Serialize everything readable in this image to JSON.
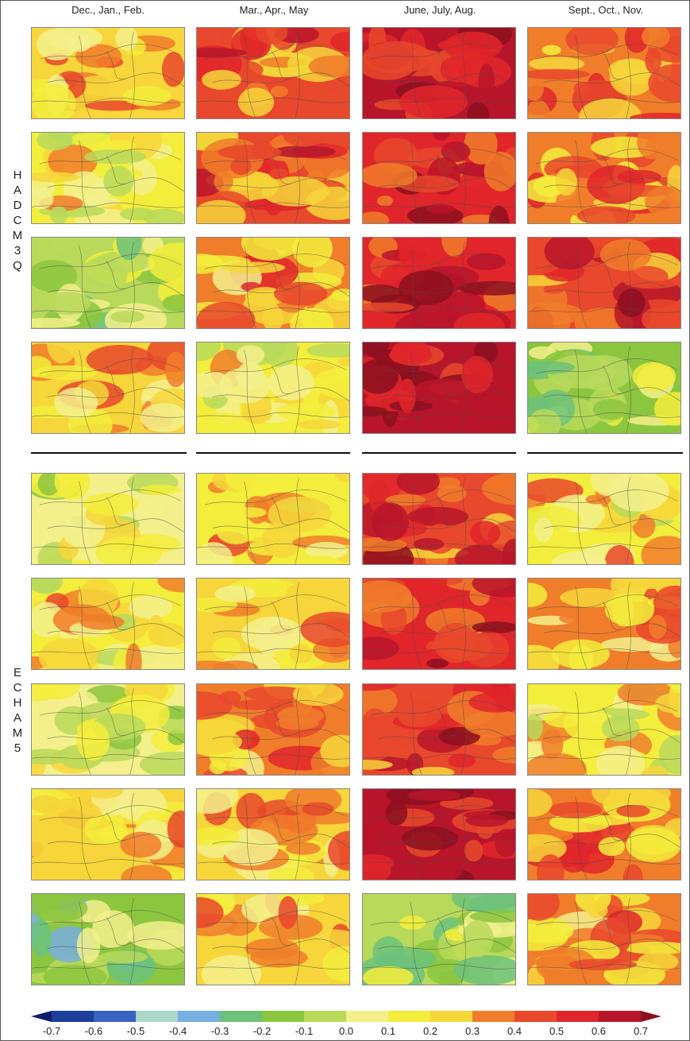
{
  "figure": {
    "columns": [
      "Dec., Jan., Feb.",
      "Mar., Apr., May",
      "June, July, Aug.",
      "Sept., Oct., Nov."
    ],
    "groups": [
      {
        "label": "HADCM3Q",
        "rows": 4
      },
      {
        "label": "ECHAM5",
        "rows": 5
      }
    ]
  },
  "colorbar": {
    "ticks": [
      "-0.7",
      "-0.6",
      "-0.5",
      "-0.4",
      "-0.3",
      "-0.2",
      "-0.1",
      "0.0",
      "0.1",
      "0.2",
      "0.3",
      "0.4",
      "0.5",
      "0.6",
      "0.7"
    ],
    "colors": [
      "#0b1f6b",
      "#1f3f9e",
      "#3a62c0",
      "#a8d8c8",
      "#78aee0",
      "#6cc27a",
      "#8cc63f",
      "#b8d95a",
      "#f3f08c",
      "#f3ed3c",
      "#f6d63a",
      "#f07d2a",
      "#e8482b",
      "#e0262a",
      "#b8152a",
      "#8c0f1e"
    ]
  },
  "maps": [
    {
      "row": 0,
      "col": 0,
      "level": 0.25
    },
    {
      "row": 0,
      "col": 1,
      "level": 0.42
    },
    {
      "row": 0,
      "col": 2,
      "level": 0.62
    },
    {
      "row": 0,
      "col": 3,
      "level": 0.38
    },
    {
      "row": 1,
      "col": 0,
      "level": 0.12
    },
    {
      "row": 1,
      "col": 1,
      "level": 0.4
    },
    {
      "row": 1,
      "col": 2,
      "level": 0.55
    },
    {
      "row": 1,
      "col": 3,
      "level": 0.35
    },
    {
      "row": 2,
      "col": 0,
      "level": 0.0
    },
    {
      "row": 2,
      "col": 1,
      "level": 0.3
    },
    {
      "row": 2,
      "col": 2,
      "level": 0.52
    },
    {
      "row": 2,
      "col": 3,
      "level": 0.5
    },
    {
      "row": 3,
      "col": 0,
      "level": 0.25
    },
    {
      "row": 3,
      "col": 1,
      "level": 0.12
    },
    {
      "row": 3,
      "col": 2,
      "level": 0.65
    },
    {
      "row": 3,
      "col": 3,
      "level": -0.1
    },
    {
      "row": 4,
      "col": 0,
      "level": 0.02
    },
    {
      "row": 4,
      "col": 1,
      "level": 0.2
    },
    {
      "row": 4,
      "col": 2,
      "level": 0.5
    },
    {
      "row": 4,
      "col": 3,
      "level": 0.2
    },
    {
      "row": 5,
      "col": 0,
      "level": 0.2
    },
    {
      "row": 5,
      "col": 1,
      "level": 0.25
    },
    {
      "row": 5,
      "col": 2,
      "level": 0.52
    },
    {
      "row": 5,
      "col": 3,
      "level": 0.3
    },
    {
      "row": 6,
      "col": 0,
      "level": 0.05
    },
    {
      "row": 6,
      "col": 1,
      "level": 0.3
    },
    {
      "row": 6,
      "col": 2,
      "level": 0.5
    },
    {
      "row": 6,
      "col": 3,
      "level": 0.15
    },
    {
      "row": 7,
      "col": 0,
      "level": 0.22
    },
    {
      "row": 7,
      "col": 1,
      "level": 0.27
    },
    {
      "row": 7,
      "col": 2,
      "level": 0.62
    },
    {
      "row": 7,
      "col": 3,
      "level": 0.35
    },
    {
      "row": 8,
      "col": 0,
      "level": -0.15
    },
    {
      "row": 8,
      "col": 1,
      "level": 0.22
    },
    {
      "row": 8,
      "col": 2,
      "level": -0.05
    },
    {
      "row": 8,
      "col": 3,
      "level": 0.3
    }
  ]
}
